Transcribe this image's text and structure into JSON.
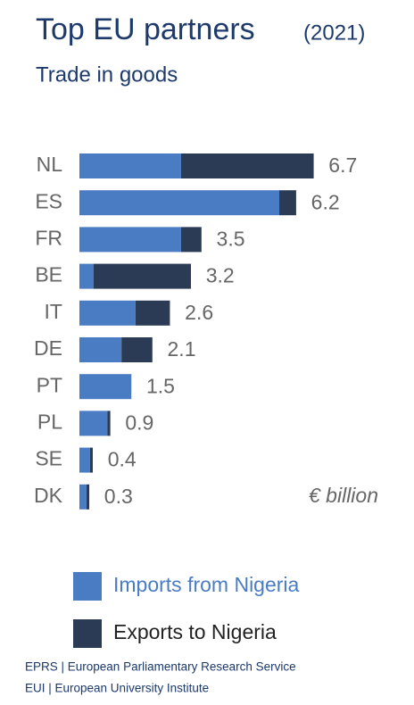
{
  "chart_data": {
    "type": "stacked-bar",
    "title": "Top EU partners",
    "title_note": "(2021)",
    "subtitle": "Trade in goods",
    "unit": "€ billion",
    "categories": [
      "NL",
      "ES",
      "FR",
      "BE",
      "IT",
      "DE",
      "PT",
      "PL",
      "SE",
      "DK"
    ],
    "series": [
      {
        "name": "Imports from Nigeria",
        "color": "#4a7cc4",
        "values": [
          2.9,
          5.7,
          2.9,
          0.4,
          1.6,
          1.2,
          1.5,
          0.8,
          0.3,
          0.2
        ]
      },
      {
        "name": "Exports to Nigeria",
        "color": "#2b3a55",
        "values": [
          3.8,
          0.5,
          0.6,
          2.8,
          1.0,
          0.9,
          0,
          0.1,
          0.1,
          0.1
        ]
      }
    ],
    "totals": [
      6.7,
      6.2,
      3.5,
      3.2,
      2.6,
      2.1,
      1.5,
      0.9,
      0.4,
      0.3
    ]
  },
  "sources": [
    "EPRS | European Parliamentary Research Service",
    "EUI | European University Institute"
  ]
}
